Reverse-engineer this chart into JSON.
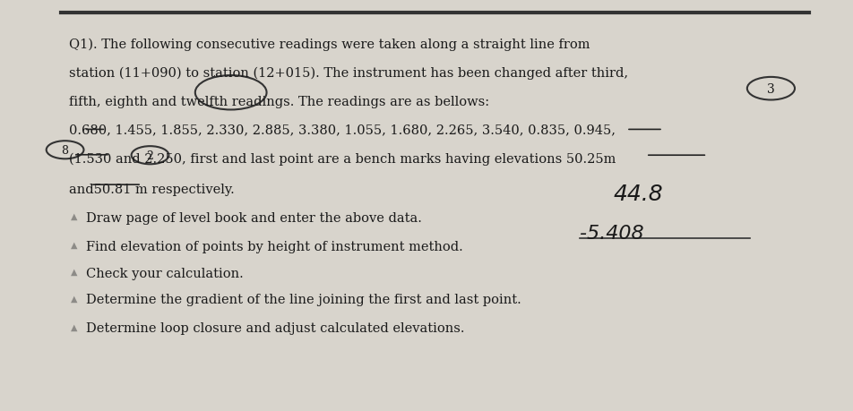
{
  "bg_color": "#d8d4cc",
  "top_bar_color": "#555555",
  "title_line1": "Q1). The following consecutive readings were taken along a straight line from",
  "title_line2": "station (11+090) to station (12+015). The instrument has been changed after third,",
  "title_line3": "fifth, eighth and twelfth readings. The readings are as bellows:",
  "readings_line": "0.680, 1.455, 1.855, 2.330, 2.885, 3.380, 1.055, 1.680, 2.265, 3.540, 0.835, 0.945,",
  "readings_line2": "(1.530 and 2.250, first and last point are a bench marks having elevations 50.25m",
  "readings_line3": "and50.81 m respectively.",
  "bullet1": "Draw page of level book and enter the above data.",
  "bullet2": "Find elevation of points by height of instrument method.",
  "bullet3": "Check your calculation.",
  "bullet4": "Determine the gradient of the line joining the first and last point.",
  "bullet5": "Determine loop closure and adjust calculated elevations.",
  "handwritten_44": "44.8",
  "handwritten_neg": "-5.408",
  "text_color": "#1a1a1a",
  "handwritten_color": "#2a2a2a"
}
